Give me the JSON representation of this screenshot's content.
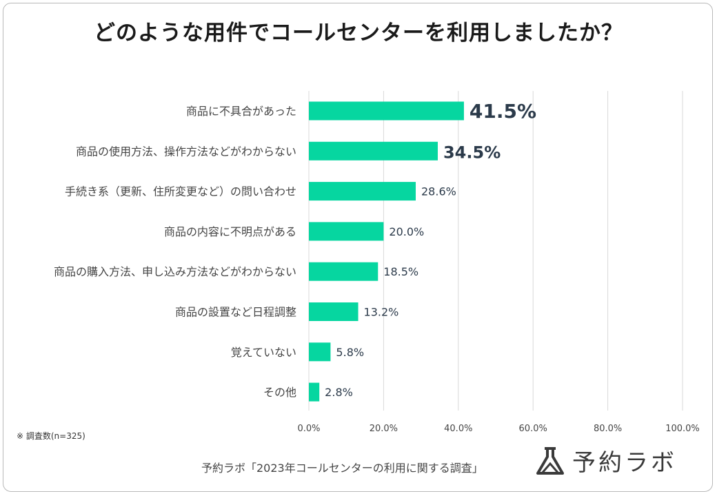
{
  "title": "どのような用件でコールセンターを利用しましたか？",
  "note": "※ 調査数(n=325)",
  "source": "予約ラボ「2023年コールセンターの利用に関する調査」",
  "logo": {
    "text": "予約ラボ",
    "icon": "flask-icon"
  },
  "colors": {
    "bar": "#06d6a0",
    "grid": "#d9d9d9",
    "value_text": "#2b3a4a"
  },
  "chart_data": {
    "type": "bar",
    "orientation": "horizontal",
    "title": "どのような用件でコールセンターを利用しましたか？",
    "xlabel": "",
    "ylabel": "",
    "xlim": [
      0,
      100
    ],
    "grid": true,
    "categories": [
      "商品に不具合があった",
      "商品の使用方法、操作方法などがわからない",
      "手続き系（更新、住所変更など）の問い合わせ",
      "商品の内容に不明点がある",
      "商品の購入方法、申し込み方法などがわからない",
      "商品の設置など日程調整",
      "覚えていない",
      "その他"
    ],
    "values": [
      41.5,
      34.5,
      28.6,
      20.0,
      18.5,
      13.2,
      5.8,
      2.8
    ],
    "value_labels": [
      "41.5%",
      "34.5%",
      "28.6%",
      "20.0%",
      "18.5%",
      "13.2%",
      "5.8%",
      "2.8%"
    ],
    "highlighted": [
      true,
      true,
      false,
      false,
      false,
      false,
      false,
      false
    ],
    "ticks": [
      0,
      20,
      40,
      60,
      80,
      100
    ],
    "tick_labels": [
      "0.0%",
      "20.0%",
      "40.0%",
      "60.0%",
      "80.0%",
      "100.0%"
    ]
  }
}
